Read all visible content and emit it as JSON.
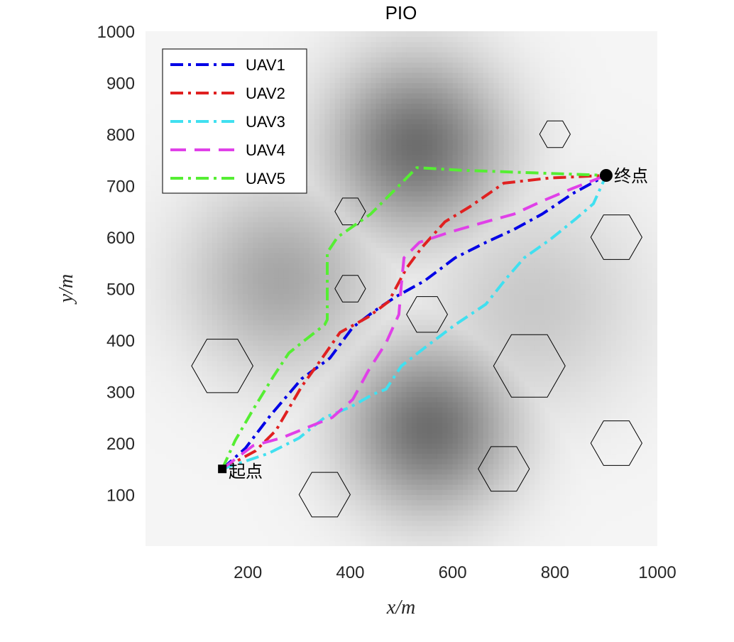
{
  "chart_data": {
    "type": "line",
    "title": "PIO",
    "xlabel": "x/m",
    "ylabel": "y/m",
    "xlim": [
      0,
      1000
    ],
    "ylim": [
      0,
      1000
    ],
    "xticks": [
      200,
      400,
      600,
      800,
      1000
    ],
    "xtick_labels": [
      "200",
      "400",
      "600",
      "800",
      "1000"
    ],
    "yticks": [
      100,
      200,
      300,
      400,
      500,
      600,
      700,
      800,
      900,
      1000
    ],
    "ytick_labels": [
      "100",
      "200",
      "300",
      "400",
      "500",
      "600",
      "700",
      "800",
      "900",
      "1000"
    ],
    "legend_position": "top-left",
    "background": {
      "type": "grayscale-threat-field",
      "peaks": [
        {
          "x": 530,
          "y": 780,
          "spread": 120,
          "strength": 0.55
        },
        {
          "x": 555,
          "y": 230,
          "spread": 115,
          "strength": 0.55
        },
        {
          "x": 265,
          "y": 520,
          "spread": 130,
          "strength": 0.32
        },
        {
          "x": 760,
          "y": 470,
          "spread": 150,
          "strength": 0.18
        }
      ]
    },
    "obstacles": [
      {
        "shape": "hexagon",
        "cx": 150,
        "cy": 350,
        "r": 60
      },
      {
        "shape": "hexagon",
        "cx": 350,
        "cy": 100,
        "r": 50
      },
      {
        "shape": "hexagon",
        "cx": 400,
        "cy": 650,
        "r": 30
      },
      {
        "shape": "hexagon",
        "cx": 400,
        "cy": 500,
        "r": 30
      },
      {
        "shape": "hexagon",
        "cx": 550,
        "cy": 450,
        "r": 40
      },
      {
        "shape": "hexagon",
        "cx": 700,
        "cy": 150,
        "r": 50
      },
      {
        "shape": "hexagon",
        "cx": 750,
        "cy": 350,
        "r": 70
      },
      {
        "shape": "hexagon",
        "cx": 800,
        "cy": 800,
        "r": 30
      },
      {
        "shape": "hexagon",
        "cx": 920,
        "cy": 600,
        "r": 50
      },
      {
        "shape": "hexagon",
        "cx": 920,
        "cy": 200,
        "r": 50
      }
    ],
    "start": {
      "x": 150,
      "y": 150,
      "label": "起点"
    },
    "end": {
      "x": 900,
      "y": 720,
      "label": "终点"
    },
    "series": [
      {
        "name": "UAV1",
        "color": "#0000e6",
        "dash": "dashdot",
        "x": [
          150,
          195,
          245,
          305,
          360,
          405,
          445,
          490,
          545,
          605,
          665,
          720,
          775,
          835,
          900
        ],
        "y": [
          150,
          190,
          255,
          325,
          365,
          425,
          455,
          485,
          515,
          560,
          590,
          615,
          645,
          685,
          720
        ]
      },
      {
        "name": "UAV2",
        "color": "#e02020",
        "dash": "dashdot",
        "x": [
          150,
          215,
          255,
          305,
          345,
          380,
          435,
          475,
          510,
          540,
          585,
          635,
          700,
          790,
          900
        ],
        "y": [
          150,
          185,
          225,
          310,
          365,
          415,
          445,
          475,
          540,
          580,
          630,
          660,
          705,
          715,
          720
        ]
      },
      {
        "name": "UAV3",
        "color": "#40e0f0",
        "dash": "dashdot",
        "x": [
          150,
          240,
          300,
          350,
          400,
          445,
          470,
          500,
          545,
          605,
          665,
          705,
          740,
          790,
          840,
          875,
          900
        ],
        "y": [
          150,
          180,
          210,
          250,
          270,
          295,
          305,
          350,
          385,
          430,
          470,
          520,
          560,
          595,
          635,
          665,
          720
        ]
      },
      {
        "name": "UAV4",
        "color": "#e040e8",
        "dash": "dash",
        "x": [
          150,
          210,
          265,
          315,
          365,
          405,
          435,
          470,
          495,
          500,
          505,
          535,
          595,
          665,
          720,
          775,
          835,
          900
        ],
        "y": [
          150,
          195,
          210,
          230,
          250,
          285,
          340,
          395,
          450,
          510,
          560,
          590,
          610,
          630,
          645,
          670,
          695,
          720
        ]
      },
      {
        "name": "UAV5",
        "color": "#55ee33",
        "dash": "dashdot",
        "x": [
          150,
          175,
          210,
          250,
          280,
          305,
          350,
          355,
          355,
          375,
          440,
          485,
          530,
          620,
          760,
          900
        ],
        "y": [
          150,
          205,
          265,
          330,
          375,
          395,
          430,
          440,
          570,
          600,
          645,
          690,
          735,
          730,
          725,
          720
        ]
      }
    ]
  }
}
